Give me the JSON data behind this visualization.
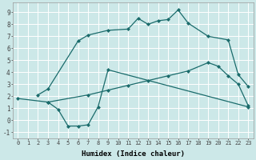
{
  "xlabel": "Humidex (Indice chaleur)",
  "bg_color": "#cce8e8",
  "grid_color": "#ffffff",
  "line_color": "#1a6b6b",
  "xlim": [
    -0.5,
    23.5
  ],
  "ylim": [
    -1.5,
    9.8
  ],
  "xticks": [
    0,
    1,
    2,
    3,
    4,
    5,
    6,
    7,
    8,
    9,
    10,
    11,
    12,
    13,
    14,
    15,
    16,
    17,
    18,
    19,
    20,
    21,
    22,
    23
  ],
  "yticks": [
    -1,
    0,
    1,
    2,
    3,
    4,
    5,
    6,
    7,
    8,
    9
  ],
  "curve1_x": [
    2,
    3,
    6,
    7,
    9,
    11,
    12,
    13,
    14,
    15,
    16,
    17,
    19,
    21,
    22,
    23
  ],
  "curve1_y": [
    2.1,
    2.6,
    6.6,
    7.1,
    7.5,
    7.6,
    8.5,
    8.0,
    8.3,
    8.4,
    9.2,
    8.1,
    7.0,
    6.7,
    3.8,
    2.8
  ],
  "curve2_x": [
    3,
    4,
    5,
    6,
    7,
    8,
    9,
    23
  ],
  "curve2_y": [
    1.5,
    0.9,
    -0.5,
    -0.5,
    -0.4,
    1.1,
    4.2,
    1.1
  ],
  "curve3_x": [
    0,
    3,
    7,
    9,
    11,
    13,
    15,
    17,
    19,
    20,
    21,
    22,
    23
  ],
  "curve3_y": [
    1.8,
    1.5,
    2.1,
    2.5,
    2.9,
    3.3,
    3.7,
    4.1,
    4.8,
    4.5,
    3.7,
    3.0,
    1.2
  ],
  "xlabel_fontsize": 6.5,
  "tick_fontsize_x": 5.0,
  "tick_fontsize_y": 5.5
}
